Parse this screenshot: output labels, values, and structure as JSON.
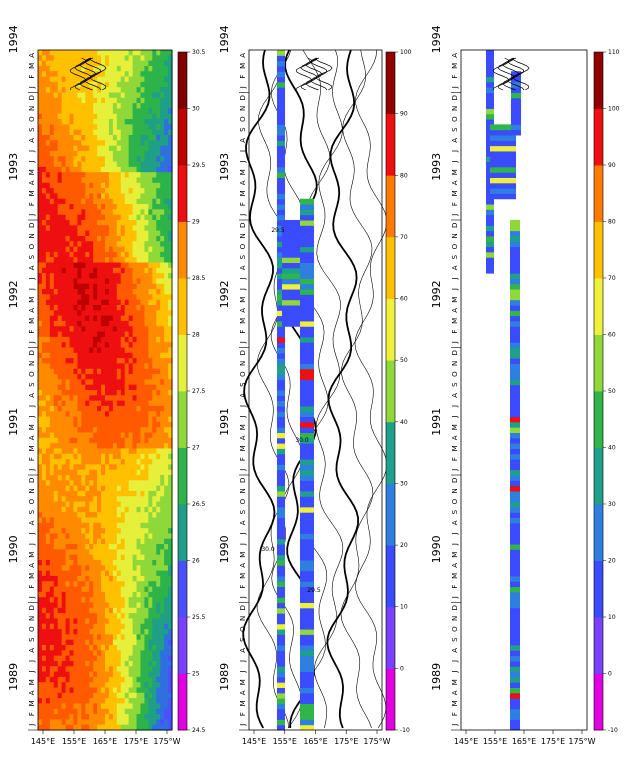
{
  "chart_data": [
    {
      "type": "heatmap",
      "panel": "left",
      "xticks": [
        "145°E",
        "155°E",
        "165°E",
        "175°E",
        "175°W"
      ],
      "colorbar": {
        "ticks": [
          "24.5",
          "25",
          "25.5",
          "26",
          "26.5",
          "27",
          "27.5",
          "28",
          "28.5",
          "29",
          "29.5",
          "30",
          "30.5"
        ],
        "range": [
          24.5,
          30.5
        ]
      }
    },
    {
      "type": "heatmap",
      "panel": "middle",
      "xticks": [
        "145°E",
        "155°E",
        "165°E",
        "175°E",
        "175°W"
      ],
      "contour_labels": [
        "29.5",
        "30.0",
        "30.0",
        "29.5"
      ],
      "colorbar": {
        "ticks": [
          "-10",
          "0",
          "10",
          "20",
          "30",
          "40",
          "50",
          "60",
          "70",
          "80",
          "90",
          "100"
        ],
        "range": [
          -10,
          100
        ]
      }
    },
    {
      "type": "heatmap",
      "panel": "right",
      "xticks": [
        "145°E",
        "155°E",
        "165°E",
        "175°E",
        "175°W"
      ],
      "colorbar": {
        "ticks": [
          "-10",
          "0",
          "10",
          "20",
          "30",
          "40",
          "50",
          "60",
          "70",
          "80",
          "90",
          "100",
          "110"
        ],
        "range": [
          -10,
          110
        ]
      }
    }
  ],
  "time_axis": {
    "years": [
      "1989",
      "1990",
      "1991",
      "1992",
      "1993",
      "1994"
    ],
    "months": [
      "J",
      "F",
      "M",
      "A",
      "M",
      "J",
      "J",
      "A",
      "S",
      "O",
      "N",
      "D"
    ],
    "start": "1989-01",
    "end": "1994-04"
  },
  "colors": {
    "temp_scale": [
      "#e000e0",
      "#7a40ff",
      "#4a50ff",
      "#2f6fe0",
      "#1f9f86",
      "#2db34a",
      "#8fd83a",
      "#e6ef3a",
      "#ffc000",
      "#ff8a00",
      "#ff5a00",
      "#ee1010",
      "#c00000",
      "#800000"
    ],
    "value_scale": [
      "#e000e0",
      "#7a40ff",
      "#3b4bff",
      "#2f7fe0",
      "#1fa08a",
      "#2fb54a",
      "#90d83a",
      "#eef03a",
      "#ffc000",
      "#ff7a00",
      "#ee1010",
      "#900000"
    ]
  }
}
